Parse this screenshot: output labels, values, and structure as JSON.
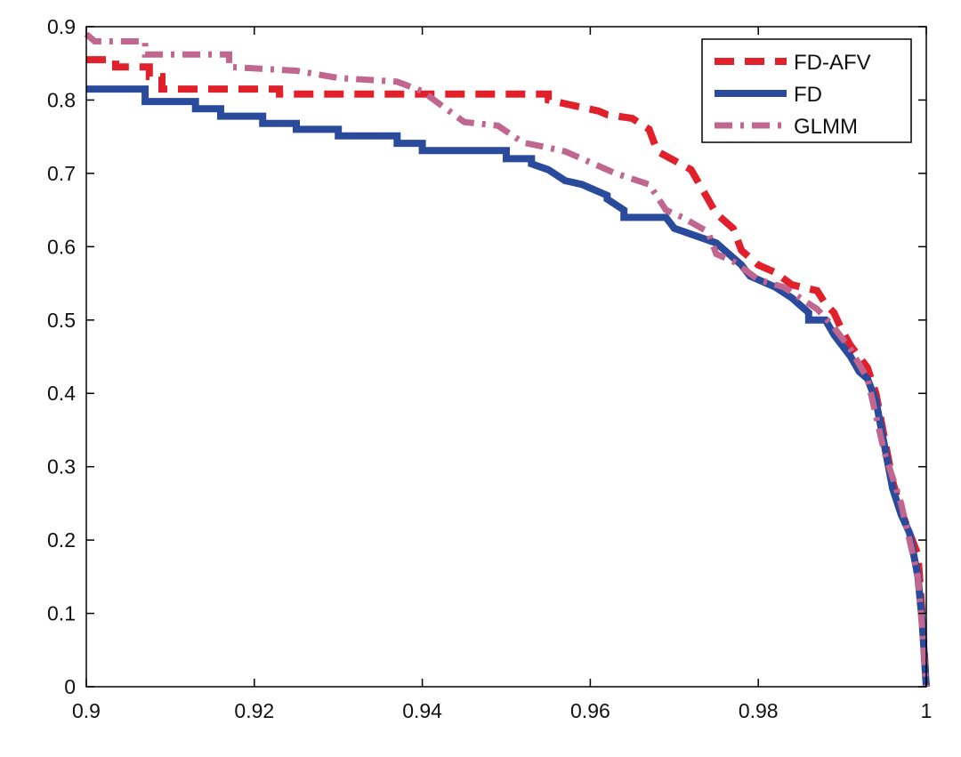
{
  "chart_data": {
    "type": "line",
    "title": "",
    "xlabel": "",
    "ylabel": "",
    "xlim": [
      0.9,
      1.0
    ],
    "ylim": [
      0,
      0.9
    ],
    "x_ticks": [
      0.9,
      0.92,
      0.94,
      0.96,
      0.98,
      1.0
    ],
    "x_tick_labels": [
      "0.9",
      "0.92",
      "0.94",
      "0.96",
      "0.98",
      "1"
    ],
    "y_ticks": [
      0,
      0.1,
      0.2,
      0.3,
      0.4,
      0.5,
      0.6,
      0.7,
      0.8,
      0.9
    ],
    "y_tick_labels": [
      "0",
      "0.1",
      "0.2",
      "0.3",
      "0.4",
      "0.5",
      "0.6",
      "0.7",
      "0.8",
      "0.9"
    ],
    "grid": false,
    "legend_position": "top-right",
    "series": [
      {
        "name": "FD-AFV",
        "color": "#e0202a",
        "style": "dashed",
        "x": [
          0.9,
          0.9035,
          0.9035,
          0.9075,
          0.9075,
          0.909,
          0.909,
          0.923,
          0.923,
          0.955,
          0.955,
          0.957,
          0.961,
          0.962,
          0.965,
          0.967,
          0.968,
          0.972,
          0.974,
          0.975,
          0.977,
          0.978,
          0.98,
          0.982,
          0.984,
          0.987,
          0.988,
          0.989,
          0.99,
          0.991,
          0.992,
          0.993,
          0.994,
          0.995,
          0.996,
          0.997,
          0.998,
          0.999,
          0.9995,
          1.0
        ],
        "y": [
          0.855,
          0.855,
          0.845,
          0.845,
          0.832,
          0.832,
          0.815,
          0.815,
          0.808,
          0.808,
          0.8,
          0.795,
          0.785,
          0.78,
          0.775,
          0.76,
          0.73,
          0.705,
          0.665,
          0.645,
          0.625,
          0.595,
          0.575,
          0.565,
          0.548,
          0.54,
          0.522,
          0.51,
          0.485,
          0.465,
          0.45,
          0.435,
          0.4,
          0.34,
          0.28,
          0.24,
          0.21,
          0.18,
          0.1,
          0.0
        ]
      },
      {
        "name": "FD",
        "color": "#2a4b9b",
        "style": "solid",
        "x": [
          0.9,
          0.907,
          0.907,
          0.913,
          0.913,
          0.916,
          0.916,
          0.921,
          0.921,
          0.925,
          0.925,
          0.93,
          0.93,
          0.937,
          0.937,
          0.94,
          0.94,
          0.95,
          0.95,
          0.953,
          0.953,
          0.955,
          0.957,
          0.959,
          0.96,
          0.961,
          0.962,
          0.962,
          0.964,
          0.964,
          0.969,
          0.97,
          0.975,
          0.978,
          0.979,
          0.982,
          0.984,
          0.986,
          0.986,
          0.988,
          0.989,
          0.99,
          0.991,
          0.992,
          0.993,
          0.994,
          0.995,
          0.996,
          0.997,
          0.998,
          0.999,
          0.9995,
          1.0
        ],
        "y": [
          0.815,
          0.815,
          0.798,
          0.798,
          0.788,
          0.788,
          0.778,
          0.778,
          0.768,
          0.768,
          0.76,
          0.76,
          0.751,
          0.751,
          0.741,
          0.741,
          0.731,
          0.731,
          0.72,
          0.72,
          0.713,
          0.705,
          0.69,
          0.685,
          0.68,
          0.675,
          0.67,
          0.665,
          0.65,
          0.64,
          0.64,
          0.625,
          0.605,
          0.575,
          0.56,
          0.545,
          0.53,
          0.51,
          0.5,
          0.5,
          0.48,
          0.465,
          0.45,
          0.43,
          0.42,
          0.39,
          0.33,
          0.27,
          0.235,
          0.21,
          0.15,
          0.09,
          0.0
        ]
      },
      {
        "name": "GLMM",
        "color": "#c0668f",
        "style": "dashdot",
        "x": [
          0.9,
          0.901,
          0.907,
          0.907,
          0.917,
          0.917,
          0.925,
          0.93,
          0.937,
          0.94,
          0.942,
          0.945,
          0.949,
          0.952,
          0.955,
          0.957,
          0.96,
          0.963,
          0.967,
          0.969,
          0.971,
          0.974,
          0.975,
          0.977,
          0.978,
          0.98,
          0.983,
          0.985,
          0.987,
          0.989,
          0.991,
          0.993,
          0.995,
          0.997,
          0.998,
          0.999,
          0.9995,
          1.0
        ],
        "y": [
          0.89,
          0.88,
          0.88,
          0.862,
          0.862,
          0.845,
          0.84,
          0.83,
          0.825,
          0.812,
          0.795,
          0.77,
          0.765,
          0.742,
          0.735,
          0.73,
          0.715,
          0.7,
          0.685,
          0.65,
          0.64,
          0.62,
          0.59,
          0.58,
          0.572,
          0.555,
          0.545,
          0.53,
          0.515,
          0.49,
          0.46,
          0.42,
          0.32,
          0.25,
          0.2,
          0.15,
          0.08,
          0.0
        ]
      }
    ]
  }
}
